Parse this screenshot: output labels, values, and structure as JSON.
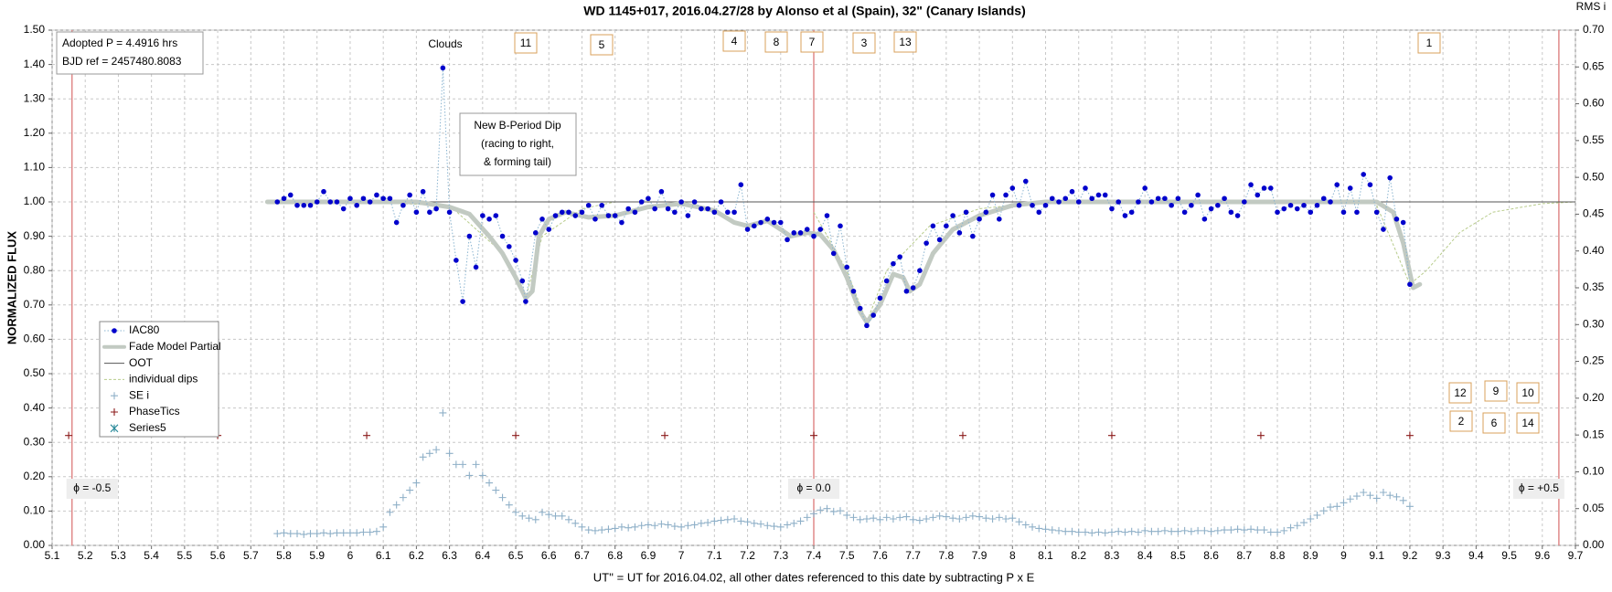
{
  "chart_data": {
    "type": "scatter",
    "title": "WD 1145+017, 2016.04.27/28  by Alonso et al (Spain), 32\" (Canary Islands)",
    "y_label": "NORMALIZED FLUX",
    "y2_label": "RMS i",
    "x_label": "UT'' = UT for 2016.04.02, all other dates referenced to this date by subtracting P x E",
    "xlim": [
      5.1,
      9.7
    ],
    "ylim": [
      0,
      1.5
    ],
    "y2lim": [
      0,
      0.7
    ],
    "xticks": [
      5.1,
      5.2,
      5.3,
      5.4,
      5.5,
      5.6,
      5.7,
      5.8,
      5.9,
      6.0,
      6.1,
      6.2,
      6.3,
      6.4,
      6.5,
      6.6,
      6.7,
      6.8,
      6.9,
      7.0,
      7.1,
      7.2,
      7.3,
      7.4,
      7.5,
      7.6,
      7.7,
      7.8,
      7.9,
      8.0,
      8.1,
      8.2,
      8.3,
      8.4,
      8.5,
      8.6,
      8.7,
      8.8,
      8.9,
      9.0,
      9.1,
      9.2,
      9.3,
      9.4,
      9.5,
      9.6,
      9.7
    ],
    "yticks": [
      {
        "value": 0,
        "label": "0.00"
      },
      {
        "value": 0.1,
        "label": "0.10"
      },
      {
        "value": 0.2,
        "label": "0.20"
      },
      {
        "value": 0.3,
        "label": "0.30"
      },
      {
        "value": 0.4,
        "label": "0.40"
      },
      {
        "value": 0.5,
        "label": "0.50"
      },
      {
        "value": 0.6,
        "label": "0.60"
      },
      {
        "value": 0.7,
        "label": "0.70"
      },
      {
        "value": 0.8,
        "label": "0.80"
      },
      {
        "value": 0.9,
        "label": "0.90"
      },
      {
        "value": 1.0,
        "label": "1.00"
      },
      {
        "value": 1.1,
        "label": "1.10"
      },
      {
        "value": 1.2,
        "label": "1.20"
      },
      {
        "value": 1.3,
        "label": "1.30"
      },
      {
        "value": 1.4,
        "label": "1.40"
      },
      {
        "value": 1.5,
        "label": "1.50"
      }
    ],
    "y2ticks": [
      {
        "value": 0,
        "label": "0.00"
      },
      {
        "value": 0.05,
        "label": "0.05"
      },
      {
        "value": 0.1,
        "label": "0.10"
      },
      {
        "value": 0.15,
        "label": "0.15"
      },
      {
        "value": 0.2,
        "label": "0.20"
      },
      {
        "value": 0.25,
        "label": "0.25"
      },
      {
        "value": 0.3,
        "label": "0.30"
      },
      {
        "value": 0.35,
        "label": "0.35"
      },
      {
        "value": 0.4,
        "label": "0.40"
      },
      {
        "value": 0.45,
        "label": "0.45"
      },
      {
        "value": 0.5,
        "label": "0.50"
      },
      {
        "value": 0.55,
        "label": "0.55"
      },
      {
        "value": 0.6,
        "label": "0.60"
      },
      {
        "value": 0.65,
        "label": "0.65"
      },
      {
        "value": 0.7,
        "label": "0.70"
      }
    ],
    "grid": true,
    "legend": "lower-left",
    "series": [
      {
        "name": "IAC80",
        "color": "#0000cc",
        "line_color": "#8ab4d0",
        "marker": "dot",
        "line": "dotted",
        "x": [
          5.78,
          5.8,
          5.82,
          5.84,
          5.86,
          5.88,
          5.9,
          5.92,
          5.94,
          5.96,
          5.98,
          6.0,
          6.02,
          6.04,
          6.06,
          6.08,
          6.1,
          6.12,
          6.14,
          6.16,
          6.18,
          6.2,
          6.22,
          6.24,
          6.26,
          6.28,
          6.3,
          6.32,
          6.34,
          6.36,
          6.38,
          6.4,
          6.42,
          6.44,
          6.46,
          6.48,
          6.5,
          6.52,
          6.53,
          6.56,
          6.58,
          6.6,
          6.62,
          6.64,
          6.66,
          6.68,
          6.7,
          6.72,
          6.74,
          6.76,
          6.78,
          6.8,
          6.82,
          6.84,
          6.86,
          6.88,
          6.9,
          6.92,
          6.94,
          6.96,
          6.98,
          7.0,
          7.02,
          7.04,
          7.06,
          7.08,
          7.1,
          7.12,
          7.14,
          7.16,
          7.18,
          7.2,
          7.22,
          7.24,
          7.26,
          7.28,
          7.3,
          7.32,
          7.34,
          7.36,
          7.38,
          7.4,
          7.42,
          7.44,
          7.46,
          7.48,
          7.5,
          7.52,
          7.54,
          7.56,
          7.58,
          7.6,
          7.62,
          7.64,
          7.66,
          7.68,
          7.7,
          7.72,
          7.74,
          7.76,
          7.78,
          7.8,
          7.82,
          7.84,
          7.86,
          7.88,
          7.9,
          7.92,
          7.94,
          7.96,
          7.98,
          8.0,
          8.02,
          8.04,
          8.06,
          8.08,
          8.1,
          8.12,
          8.14,
          8.16,
          8.18,
          8.2,
          8.22,
          8.24,
          8.26,
          8.28,
          8.3,
          8.32,
          8.34,
          8.36,
          8.38,
          8.4,
          8.42,
          8.44,
          8.46,
          8.48,
          8.5,
          8.52,
          8.54,
          8.56,
          8.58,
          8.6,
          8.62,
          8.64,
          8.66,
          8.68,
          8.7,
          8.72,
          8.74,
          8.76,
          8.78,
          8.8,
          8.82,
          8.84,
          8.86,
          8.88,
          8.9,
          8.92,
          8.94,
          8.96,
          8.98,
          9.0,
          9.02,
          9.04,
          9.06,
          9.08,
          9.1,
          9.12,
          9.14,
          9.16,
          9.18,
          9.2
        ],
        "values": [
          1.0,
          1.01,
          1.02,
          0.99,
          0.99,
          0.99,
          1.0,
          1.03,
          1.0,
          1.0,
          0.98,
          1.01,
          0.99,
          1.01,
          1.0,
          1.02,
          1.01,
          1.01,
          0.94,
          0.99,
          1.02,
          0.97,
          1.03,
          0.97,
          0.98,
          1.39,
          0.97,
          0.83,
          0.71,
          0.9,
          0.81,
          0.96,
          0.95,
          0.96,
          0.9,
          0.87,
          0.83,
          0.77,
          0.71,
          0.91,
          0.95,
          0.92,
          0.96,
          0.97,
          0.97,
          0.96,
          0.97,
          0.99,
          0.95,
          0.99,
          0.96,
          0.96,
          0.94,
          0.98,
          0.97,
          1.0,
          1.01,
          0.98,
          1.03,
          0.98,
          0.97,
          1.0,
          0.96,
          1.0,
          0.98,
          0.98,
          0.97,
          1.0,
          0.97,
          0.97,
          1.05,
          0.92,
          0.93,
          0.94,
          0.95,
          0.94,
          0.94,
          0.89,
          0.91,
          0.91,
          0.92,
          0.9,
          0.92,
          0.96,
          0.85,
          0.93,
          0.81,
          0.74,
          0.69,
          0.64,
          0.67,
          0.72,
          0.77,
          0.82,
          0.84,
          0.74,
          0.75,
          0.8,
          0.88,
          0.93,
          0.89,
          0.93,
          0.96,
          0.91,
          0.97,
          0.9,
          0.95,
          0.97,
          1.02,
          0.95,
          1.02,
          1.04,
          0.99,
          1.06,
          0.99,
          0.97,
          0.99,
          1.01,
          1.0,
          1.01,
          1.03,
          1.0,
          1.04,
          1.01,
          1.02,
          1.02,
          0.98,
          1.0,
          0.96,
          0.97,
          1.0,
          1.04,
          1.0,
          1.01,
          1.01,
          0.99,
          1.01,
          0.97,
          0.99,
          1.02,
          0.95,
          0.98,
          0.99,
          1.01,
          0.97,
          0.96,
          1.0,
          1.05,
          1.02,
          1.04,
          1.04,
          0.97,
          0.98,
          0.99,
          0.98,
          0.99,
          0.97,
          0.99,
          1.01,
          1.0,
          1.05,
          0.97,
          1.04,
          0.97,
          1.08,
          1.05,
          0.97,
          0.92,
          1.07,
          0.95,
          0.94,
          0.76
        ]
      },
      {
        "name": "Fade Model Partial",
        "color": "#c2cac2",
        "marker": "none",
        "line": "thick",
        "x": [
          5.75,
          6.2,
          6.3,
          6.36,
          6.42,
          6.46,
          6.5,
          6.53,
          6.55,
          6.57,
          6.6,
          6.65,
          6.72,
          6.8,
          6.9,
          7.0,
          7.1,
          7.16,
          7.2,
          7.26,
          7.3,
          7.33,
          7.38,
          7.42,
          7.46,
          7.5,
          7.54,
          7.56,
          7.6,
          7.64,
          7.67,
          7.69,
          7.72,
          7.76,
          7.82,
          7.9,
          8.0,
          8.1,
          9.1,
          9.15,
          9.18,
          9.21,
          9.23
        ],
        "values": [
          1.0,
          1.0,
          0.985,
          0.965,
          0.9,
          0.85,
          0.78,
          0.72,
          0.74,
          0.9,
          0.95,
          0.97,
          0.955,
          0.96,
          0.985,
          0.995,
          0.975,
          0.94,
          0.93,
          0.945,
          0.92,
          0.9,
          0.91,
          0.905,
          0.86,
          0.78,
          0.68,
          0.65,
          0.7,
          0.79,
          0.78,
          0.74,
          0.76,
          0.85,
          0.92,
          0.96,
          0.99,
          1.0,
          1.0,
          0.97,
          0.88,
          0.75,
          0.76
        ]
      },
      {
        "name": "OOT",
        "color": "#555555",
        "marker": "none",
        "line": "solid",
        "x": [
          5.75,
          9.7
        ],
        "values": [
          1.0,
          1.0
        ]
      },
      {
        "name": "individual dips",
        "color": "#b8cc8c",
        "marker": "none",
        "line": "dashed",
        "x": [
          6.0,
          6.3,
          6.45,
          6.53,
          6.58,
          6.7,
          6.8,
          7.2,
          7.4,
          7.5,
          7.56,
          7.62,
          7.75,
          7.9,
          8.1,
          8.9,
          9.1,
          9.2,
          9.25,
          9.35,
          9.45,
          9.6,
          9.7
        ],
        "values": [
          1.0,
          0.99,
          0.86,
          0.72,
          0.9,
          0.98,
          1.0,
          null,
          0.97,
          0.8,
          0.65,
          0.8,
          0.93,
          0.98,
          1.0,
          null,
          0.99,
          0.76,
          0.8,
          0.91,
          0.97,
          0.995,
          1.0
        ]
      },
      {
        "name": "SE i",
        "color": "#8fb0c8",
        "marker": "plus",
        "line": "none",
        "axis": "y2",
        "x": [
          5.78,
          5.8,
          5.82,
          5.84,
          5.86,
          5.88,
          5.9,
          5.92,
          5.94,
          5.96,
          5.98,
          6.0,
          6.02,
          6.04,
          6.06,
          6.08,
          6.1,
          6.12,
          6.14,
          6.16,
          6.18,
          6.2,
          6.22,
          6.24,
          6.26,
          6.28,
          6.3,
          6.32,
          6.34,
          6.36,
          6.38,
          6.4,
          6.42,
          6.44,
          6.46,
          6.48,
          6.5,
          6.52,
          6.54,
          6.56,
          6.58,
          6.6,
          6.62,
          6.64,
          6.66,
          6.68,
          6.7,
          6.72,
          6.74,
          6.76,
          6.78,
          6.8,
          6.82,
          6.84,
          6.86,
          6.88,
          6.9,
          6.92,
          6.94,
          6.96,
          6.98,
          7.0,
          7.02,
          7.04,
          7.06,
          7.08,
          7.1,
          7.12,
          7.14,
          7.16,
          7.18,
          7.2,
          7.22,
          7.24,
          7.26,
          7.28,
          7.3,
          7.32,
          7.34,
          7.36,
          7.38,
          7.4,
          7.42,
          7.44,
          7.46,
          7.48,
          7.5,
          7.52,
          7.54,
          7.56,
          7.58,
          7.6,
          7.62,
          7.64,
          7.66,
          7.68,
          7.7,
          7.72,
          7.74,
          7.76,
          7.78,
          7.8,
          7.82,
          7.84,
          7.86,
          7.88,
          7.9,
          7.92,
          7.94,
          7.96,
          7.98,
          8.0,
          8.02,
          8.04,
          8.06,
          8.08,
          8.1,
          8.12,
          8.14,
          8.16,
          8.18,
          8.2,
          8.22,
          8.24,
          8.26,
          8.28,
          8.3,
          8.32,
          8.34,
          8.36,
          8.38,
          8.4,
          8.42,
          8.44,
          8.46,
          8.48,
          8.5,
          8.52,
          8.54,
          8.56,
          8.58,
          8.6,
          8.62,
          8.64,
          8.66,
          8.68,
          8.7,
          8.72,
          8.74,
          8.76,
          8.78,
          8.8,
          8.82,
          8.84,
          8.86,
          8.88,
          8.9,
          8.92,
          8.94,
          8.96,
          8.98,
          9.0,
          9.02,
          9.04,
          9.06,
          9.08,
          9.1,
          9.12,
          9.14,
          9.16,
          9.18,
          9.2
        ],
        "values": [
          0.016,
          0.017,
          0.016,
          0.016,
          0.015,
          0.016,
          0.016,
          0.017,
          0.016,
          0.017,
          0.017,
          0.017,
          0.017,
          0.018,
          0.018,
          0.019,
          0.025,
          0.045,
          0.055,
          0.065,
          0.075,
          0.085,
          0.12,
          0.125,
          0.13,
          0.18,
          0.125,
          0.11,
          0.11,
          0.095,
          0.11,
          0.095,
          0.085,
          0.075,
          0.065,
          0.055,
          0.045,
          0.04,
          0.037,
          0.035,
          0.045,
          0.042,
          0.04,
          0.04,
          0.035,
          0.03,
          0.025,
          0.021,
          0.02,
          0.021,
          0.022,
          0.023,
          0.025,
          0.024,
          0.025,
          0.027,
          0.028,
          0.027,
          0.029,
          0.028,
          0.026,
          0.025,
          0.027,
          0.028,
          0.03,
          0.031,
          0.033,
          0.034,
          0.035,
          0.036,
          0.033,
          0.032,
          0.03,
          0.029,
          0.027,
          0.026,
          0.025,
          0.028,
          0.03,
          0.033,
          0.038,
          0.043,
          0.048,
          0.05,
          0.046,
          0.047,
          0.041,
          0.038,
          0.035,
          0.036,
          0.037,
          0.035,
          0.038,
          0.036,
          0.038,
          0.039,
          0.035,
          0.034,
          0.036,
          0.038,
          0.04,
          0.039,
          0.037,
          0.036,
          0.038,
          0.04,
          0.039,
          0.037,
          0.036,
          0.038,
          0.036,
          0.037,
          0.032,
          0.028,
          0.025,
          0.023,
          0.022,
          0.021,
          0.02,
          0.019,
          0.019,
          0.018,
          0.018,
          0.017,
          0.018,
          0.017,
          0.018,
          0.019,
          0.018,
          0.019,
          0.018,
          0.02,
          0.019,
          0.019,
          0.02,
          0.019,
          0.019,
          0.02,
          0.019,
          0.02,
          0.02,
          0.019,
          0.02,
          0.021,
          0.021,
          0.022,
          0.021,
          0.022,
          0.021,
          0.021,
          0.018,
          0.018,
          0.02,
          0.024,
          0.027,
          0.031,
          0.036,
          0.041,
          0.047,
          0.052,
          0.053,
          0.058,
          0.063,
          0.067,
          0.072,
          0.068,
          0.064,
          0.072,
          0.068,
          0.066,
          0.061,
          0.053
        ]
      },
      {
        "name": "PhaseTics",
        "color": "#8b1a1a",
        "marker": "plus",
        "line": "none",
        "x": [
          5.15,
          5.6,
          6.05,
          6.5,
          6.95,
          7.4,
          7.85,
          8.3,
          8.75,
          9.2
        ],
        "values": [
          0.32,
          0.32,
          0.32,
          0.32,
          0.32,
          0.32,
          0.32,
          0.32,
          0.32,
          0.32
        ]
      },
      {
        "name": "Series5",
        "color": "#2a8a9a",
        "marker": "cross",
        "line": "none",
        "x": [],
        "values": []
      }
    ],
    "reference_lines": {
      "x": [
        5.16,
        7.4,
        9.65
      ],
      "color": "#e08a8a"
    },
    "phase_labels": [
      "ϕ = -0.5",
      "ϕ = 0.0",
      "ϕ = +0.5"
    ],
    "info_box": [
      "Adopted P = 4.4916 hrs",
      "BJD ref = 2457480.8083"
    ],
    "note_box": [
      "New B-Period Dip",
      "(racing to right,",
      "& forming tail)"
    ],
    "clouds_label": "Clouds",
    "dip_labels": [
      "11",
      "5",
      "4",
      "8",
      "7",
      "3",
      "13",
      "1",
      "12",
      "9",
      "10",
      "2",
      "6",
      "14"
    ]
  }
}
